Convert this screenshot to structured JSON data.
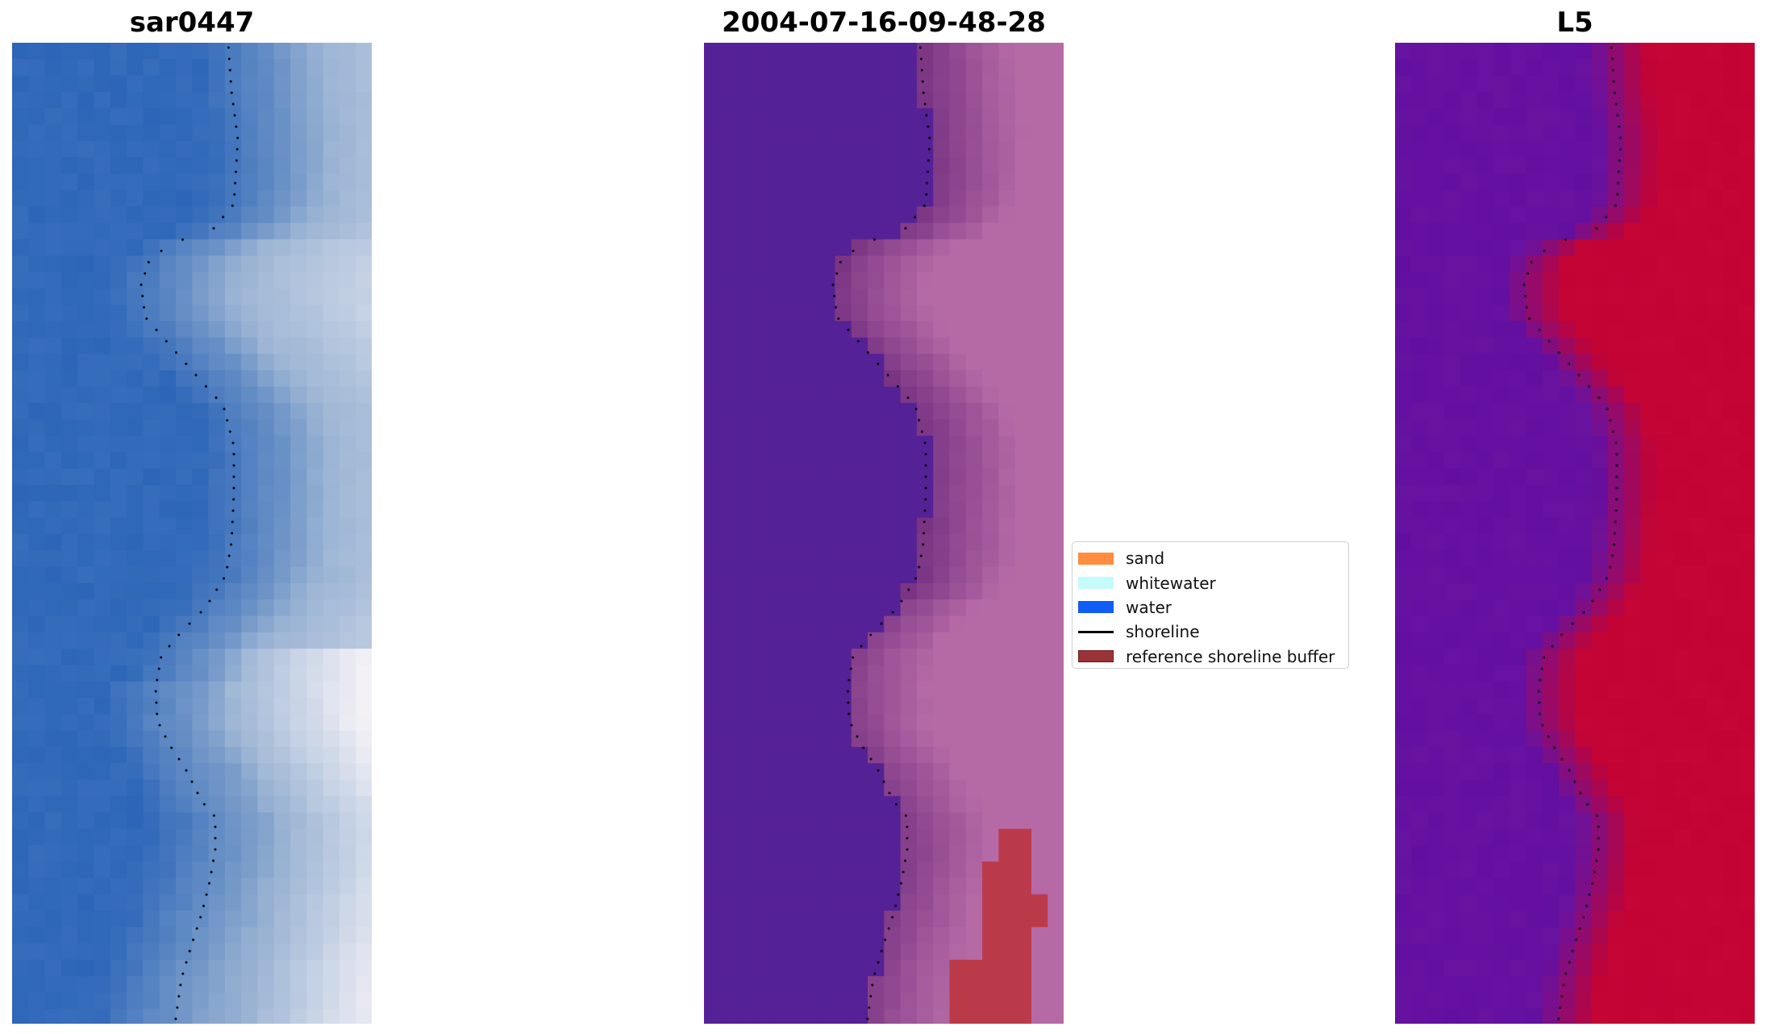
{
  "panels": [
    {
      "title": "sar0447",
      "scheme": "rgb"
    },
    {
      "title": "2004-07-16-09-48-28",
      "scheme": "class"
    },
    {
      "title": "L5",
      "scheme": "index"
    }
  ],
  "legend": {
    "placement": "center, between middle and right panels",
    "items": [
      {
        "label": "sand",
        "kind": "patch",
        "color": "#ff8c3f"
      },
      {
        "label": "whitewater",
        "kind": "patch",
        "color": "#c6fbfb"
      },
      {
        "label": "water",
        "kind": "patch",
        "color": "#0f5cf7"
      },
      {
        "label": "shoreline",
        "kind": "line",
        "color": "#000000"
      },
      {
        "label": "reference shoreline buffer",
        "kind": "patch",
        "color": "#9b3237",
        "edge": "#6e1f23"
      }
    ]
  },
  "colors": {
    "sar_water": "#2d66b8",
    "sar_surf": "#f3f1f6",
    "class_water_fill": "#552196",
    "class_land_fill": "#b56aa6",
    "buffer_fill": "#bb3a4a",
    "index_water": "#6812a0",
    "index_land": "#c20334"
  }
}
